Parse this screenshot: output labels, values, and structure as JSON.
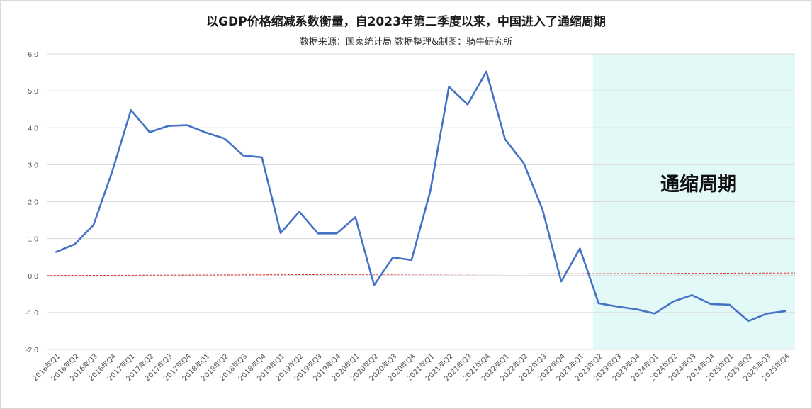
{
  "chart_data": {
    "type": "line",
    "title": "以GDP价格缩减系数衡量，自2023年第二季度以来，中国进入了通缩周期",
    "subtitle": "数据来源：国家统计局 数据整理&制图：骑牛研究所",
    "xlabel": "",
    "ylabel": "",
    "ylim": [
      -2.0,
      6.0
    ],
    "y_ticks": [
      "6.0",
      "5.0",
      "4.0",
      "3.0",
      "2.0",
      "1.0",
      "0.0",
      "-1.0",
      "-2.0"
    ],
    "grid": "horizontal",
    "categories": [
      "2016年Q1",
      "2016年Q2",
      "2016年Q3",
      "2016年Q4",
      "2017年Q1",
      "2017年Q2",
      "2017年Q3",
      "2017年Q4",
      "2018年Q1",
      "2018年Q2",
      "2018年Q3",
      "2018年Q4",
      "2019年Q1",
      "2019年Q2",
      "2019年Q3",
      "2019年Q4",
      "2020年Q1",
      "2020年Q2",
      "2020年Q3",
      "2020年Q4",
      "2021年Q1",
      "2021年Q2",
      "2021年Q3",
      "2021年Q4",
      "2022年Q1",
      "2022年Q2",
      "2022年Q3",
      "2022年Q4",
      "2023年Q1",
      "2023年Q2",
      "2023年Q3",
      "2023年Q4",
      "2024年Q1",
      "2024年Q2",
      "2024年Q3",
      "2024年Q4",
      "2025年Q1",
      "2025年Q2",
      "2025年Q3",
      "2025年Q4"
    ],
    "series": [
      {
        "color": "#4472c4",
        "values": [
          0.64,
          0.85,
          1.37,
          2.82,
          4.48,
          3.88,
          4.05,
          4.07,
          3.87,
          3.71,
          3.25,
          3.2,
          1.15,
          1.73,
          1.14,
          1.14,
          1.58,
          -0.26,
          0.49,
          0.42,
          2.28,
          5.11,
          4.63,
          5.52,
          3.69,
          3.04,
          1.79,
          -0.16,
          0.73,
          -0.75,
          -0.84,
          -0.91,
          -1.03,
          -0.7,
          -0.53,
          -0.77,
          -0.79,
          -1.23,
          -1.03,
          -0.96
        ]
      }
    ],
    "reference_line": {
      "value": 0.05,
      "color": "#e03030",
      "style": "dashed"
    },
    "shaded_region": {
      "from": "2023年Q2",
      "to_end": true,
      "color": "#e3f9f7",
      "label": "通缩周期"
    }
  }
}
